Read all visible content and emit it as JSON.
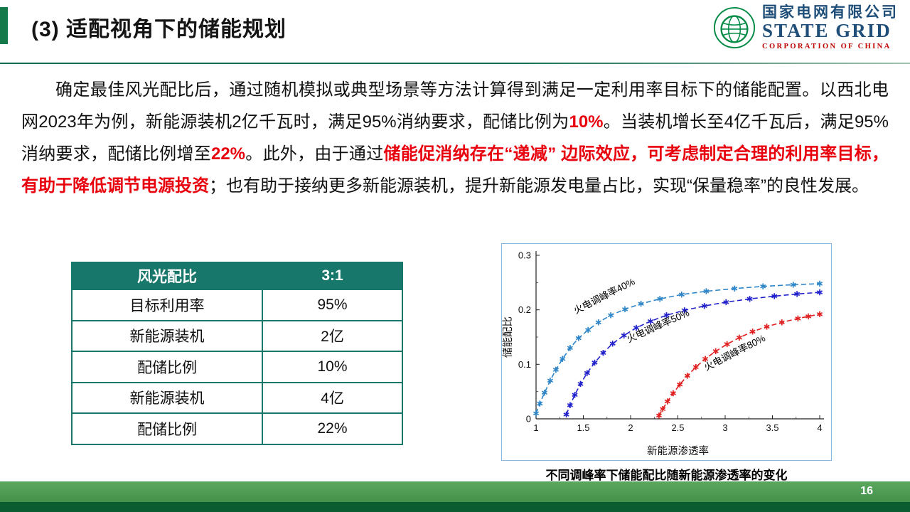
{
  "header": {
    "title": "(3) 适配视角下的储能规划",
    "logo": {
      "cn": "国家电网有限公司",
      "en": "STATE GRID",
      "en_sub": "CORPORATION  OF  CHINA"
    }
  },
  "paragraph": {
    "segments": [
      {
        "text": "确定最佳风光配比后，通过随机模拟或典型场景等方法计算得到满足一定利用率目标下的储能配置。以西北电网2023年为例，新能源装机2亿千瓦时，满足95%消纳要求，配储比例为",
        "style": "normal"
      },
      {
        "text": "10%",
        "style": "highlight"
      },
      {
        "text": "。当装机增长至4亿千瓦后，满足95%消纳要求，配储比例增至",
        "style": "normal"
      },
      {
        "text": "22%",
        "style": "highlight"
      },
      {
        "text": "。此外，由于通过",
        "style": "normal"
      },
      {
        "text": "储能促消纳存在“递减” 边际效应，可考虑制定合理的利用率目标，有助于降低调节电源投资",
        "style": "highlight"
      },
      {
        "text": "；也有助于接纳更多新能源装机，提升新能源发电量占比，实现“保量稳率”的良性发展。",
        "style": "normal"
      }
    ]
  },
  "table": {
    "header": [
      "风光配比",
      "3:1"
    ],
    "rows": [
      [
        "目标利用率",
        "95%"
      ],
      [
        "新能源装机",
        "2亿"
      ],
      [
        "配储比例",
        "10%"
      ],
      [
        "新能源装机",
        "4亿"
      ],
      [
        "配储比例",
        "22%"
      ]
    ]
  },
  "chart_data": {
    "type": "scatter",
    "title": "",
    "xlabel": "新能源渗透率",
    "ylabel": "储能配比",
    "xlim": [
      1,
      4
    ],
    "ylim": [
      0,
      0.3
    ],
    "xticks": [
      1,
      1.5,
      2,
      2.5,
      3,
      3.5,
      4
    ],
    "yticks": [
      0,
      0.1,
      0.2,
      0.3
    ],
    "grid": false,
    "legend_position": "inline-rotated-labels",
    "line_style": "dashed",
    "marker": "asterisk",
    "series": [
      {
        "name": "火电调峰率40%",
        "color": "#2e86c8",
        "x": [
          1.0,
          1.04,
          1.09,
          1.15,
          1.21,
          1.28,
          1.36,
          1.45,
          1.55,
          1.66,
          1.79,
          1.94,
          2.11,
          2.31,
          2.54,
          2.8,
          3.1,
          3.4,
          3.72,
          4.0
        ],
        "y": [
          0.01,
          0.028,
          0.048,
          0.07,
          0.09,
          0.11,
          0.13,
          0.148,
          0.163,
          0.177,
          0.19,
          0.201,
          0.211,
          0.22,
          0.228,
          0.234,
          0.239,
          0.243,
          0.246,
          0.248
        ],
        "label": {
          "x": 1.42,
          "y": 0.192,
          "rotate": -27
        }
      },
      {
        "name": "火电调峰率50%",
        "color": "#2222cc",
        "x": [
          1.32,
          1.36,
          1.41,
          1.47,
          1.54,
          1.62,
          1.71,
          1.81,
          1.93,
          2.06,
          2.21,
          2.38,
          2.57,
          2.78,
          3.01,
          3.26,
          3.52,
          3.76,
          4.0
        ],
        "y": [
          0.008,
          0.025,
          0.044,
          0.064,
          0.084,
          0.103,
          0.121,
          0.138,
          0.153,
          0.167,
          0.179,
          0.19,
          0.199,
          0.207,
          0.214,
          0.22,
          0.225,
          0.229,
          0.232
        ],
        "label": {
          "x": 1.98,
          "y": 0.14,
          "rotate": -24
        }
      },
      {
        "name": "火电调峰率80%",
        "color": "#e02020",
        "x": [
          2.3,
          2.34,
          2.39,
          2.45,
          2.52,
          2.6,
          2.69,
          2.79,
          2.9,
          3.02,
          3.15,
          3.29,
          3.44,
          3.6,
          3.77,
          3.88,
          4.0
        ],
        "y": [
          0.006,
          0.018,
          0.032,
          0.047,
          0.063,
          0.079,
          0.095,
          0.11,
          0.124,
          0.137,
          0.149,
          0.16,
          0.169,
          0.177,
          0.184,
          0.188,
          0.192
        ],
        "label": {
          "x": 2.8,
          "y": 0.088,
          "rotate": -27
        }
      }
    ]
  },
  "chart_caption": "不同调峰率下储能配比随新能源渗透率的变化",
  "footer": {
    "page_number": "16"
  },
  "colors": {
    "accent_green": "#157a4b",
    "table_teal": "#17776b",
    "highlight_red": "#e8000d",
    "footer_green": "#4f9b53",
    "footer_dark_green": "#0b5c30",
    "chart_border_blue": "#8ab6dc",
    "logo_navy": "#1f4e79",
    "logo_red": "#c00000",
    "logo_emblem_green": "#008a45"
  }
}
